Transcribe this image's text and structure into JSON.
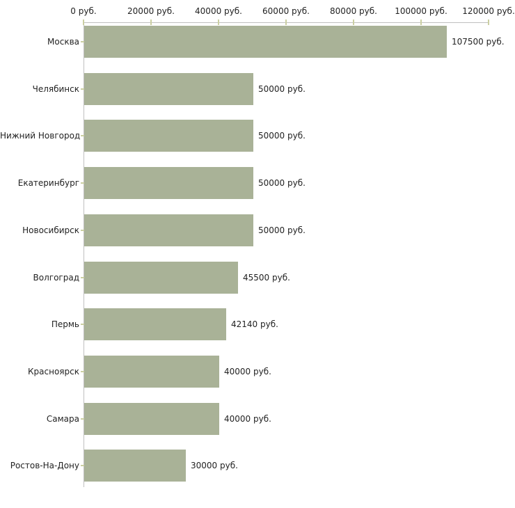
{
  "chart_data": {
    "type": "bar",
    "orientation": "horizontal",
    "title": "",
    "xlabel": "",
    "ylabel": "",
    "categories": [
      "Москва",
      "Челябинск",
      "Нижний Новгород",
      "Екатеринбург",
      "Новосибирск",
      "Волгоград",
      "Пермь",
      "Красноярск",
      "Самара",
      "Ростов-На-Дону"
    ],
    "values": [
      107500,
      50000,
      50000,
      50000,
      50000,
      45500,
      42140,
      40000,
      40000,
      30000
    ],
    "value_labels": [
      "107500 руб.",
      "50000 руб.",
      "50000 руб.",
      "50000 руб.",
      "50000 руб.",
      "45500 руб.",
      "42140 руб.",
      "40000 руб.",
      "40000 руб.",
      "30000 руб."
    ],
    "xlim": [
      0,
      120000
    ],
    "x_ticks": [
      0,
      20000,
      40000,
      60000,
      80000,
      100000,
      120000
    ],
    "x_tick_labels": [
      "0 руб.",
      "20000 руб.",
      "40000 руб.",
      "60000 руб.",
      "80000 руб.",
      "100000 руб.",
      "120000 руб."
    ],
    "grid": false,
    "legend": false,
    "colors": {
      "bar_fill": "#a9b297",
      "axis_line": "#bfbfbf",
      "tick_mark": "#cbcfa2",
      "text": "#222222",
      "background": "#ffffff"
    }
  }
}
